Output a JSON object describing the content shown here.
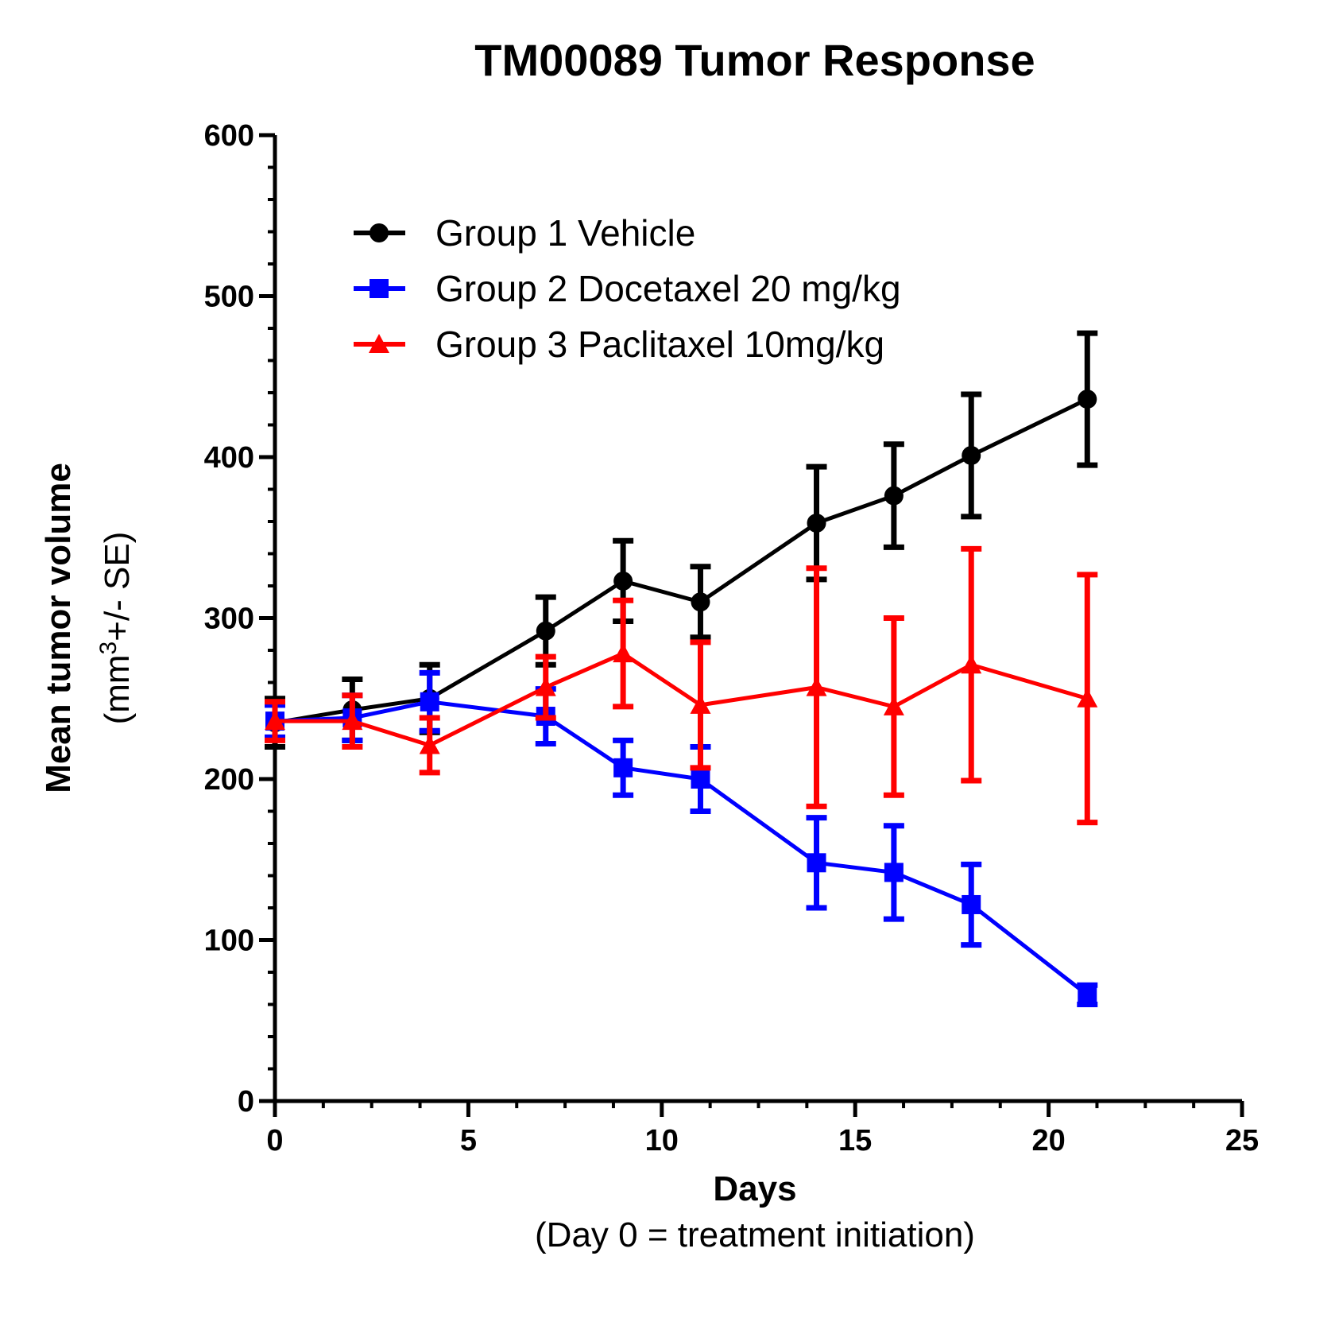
{
  "chart_data": {
    "type": "line",
    "title": "TM00089 Tumor Response",
    "xlabel": "Days",
    "xlabel_sub": "(Day 0 = treatment initiation)",
    "ylabel": "Mean tumor volume",
    "ylabel_sub": {
      "pre": "(mm",
      "sup": "3",
      "post": "+/- SE)"
    },
    "xlim": [
      0,
      25
    ],
    "ylim": [
      0,
      600
    ],
    "x_ticks": [
      0,
      5,
      10,
      15,
      20,
      25
    ],
    "y_ticks": [
      0,
      100,
      200,
      300,
      400,
      500,
      600
    ],
    "grid": false,
    "legend_position": "top-left",
    "series": [
      {
        "name": "Group 1 Vehicle",
        "color": "#000000",
        "marker": "circle",
        "x": [
          0,
          2,
          4,
          7,
          9,
          11,
          14,
          16,
          18,
          21
        ],
        "y": [
          235,
          243,
          250,
          292,
          323,
          310,
          359,
          376,
          401,
          436
        ],
        "err": [
          15,
          19,
          21,
          21,
          25,
          22,
          35,
          32,
          38,
          41
        ]
      },
      {
        "name": "Group 2 Docetaxel 20 mg/kg",
        "color": "#0000ff",
        "marker": "square",
        "x": [
          0,
          2,
          4,
          7,
          9,
          11,
          14,
          16,
          18,
          21
        ],
        "y": [
          236,
          238,
          248,
          239,
          207,
          200,
          148,
          142,
          122,
          66
        ],
        "err": [
          10,
          14,
          18,
          17,
          17,
          20,
          28,
          29,
          25,
          6
        ]
      },
      {
        "name": "Group 3 Paclitaxel 10mg/kg",
        "color": "#ff0000",
        "marker": "triangle",
        "x": [
          0,
          2,
          4,
          7,
          9,
          11,
          14,
          16,
          18,
          21
        ],
        "y": [
          236,
          236,
          221,
          257,
          278,
          246,
          257,
          245,
          271,
          250
        ],
        "err": [
          12,
          16,
          17,
          19,
          33,
          39,
          74,
          55,
          72,
          77
        ]
      }
    ]
  }
}
